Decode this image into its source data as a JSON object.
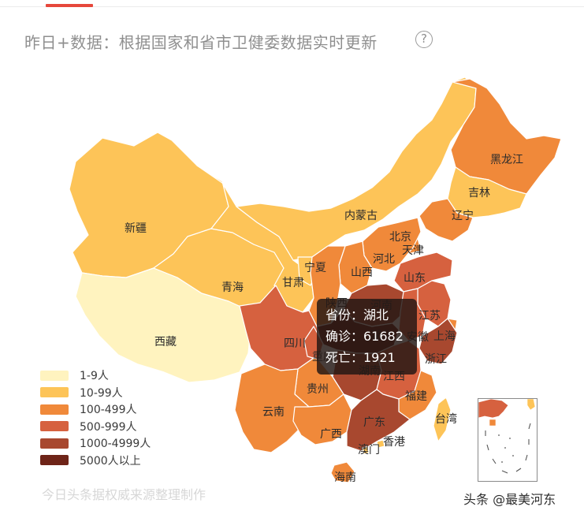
{
  "header": {
    "title": "昨日+数据：根据国家和省市卫健委数据实时更新",
    "help_glyph": "?"
  },
  "colors": {
    "tier_1_9": "#fff3bf",
    "tier_10_99": "#fdc458",
    "tier_100_499": "#f0893a",
    "tier_500_999": "#d6613f",
    "tier_1000_4999": "#a8482f",
    "tier_5000_plus": "#6e2418",
    "border": "#ffffff"
  },
  "map": {
    "provinces": [
      {
        "id": "xinjiang",
        "label": "新疆",
        "tier": "tier_10_99"
      },
      {
        "id": "xizang",
        "label": "西藏",
        "tier": "tier_1_9"
      },
      {
        "id": "qinghai",
        "label": "青海",
        "tier": "tier_10_99"
      },
      {
        "id": "gansu",
        "label": "甘肃",
        "tier": "tier_10_99"
      },
      {
        "id": "neimenggu",
        "label": "内蒙古",
        "tier": "tier_10_99"
      },
      {
        "id": "ningxia",
        "label": "宁夏",
        "tier": "tier_10_99"
      },
      {
        "id": "heilongjiang",
        "label": "黑龙江",
        "tier": "tier_100_499"
      },
      {
        "id": "jilin",
        "label": "吉林",
        "tier": "tier_10_99"
      },
      {
        "id": "liaoning",
        "label": "辽宁",
        "tier": "tier_100_499"
      },
      {
        "id": "beijing",
        "label": "北京",
        "tier": "tier_100_499"
      },
      {
        "id": "tianjin",
        "label": "天津",
        "tier": "tier_100_499"
      },
      {
        "id": "hebei",
        "label": "河北",
        "tier": "tier_100_499"
      },
      {
        "id": "shanxi",
        "label": "山西",
        "tier": "tier_100_499"
      },
      {
        "id": "shandong",
        "label": "山东",
        "tier": "tier_500_999"
      },
      {
        "id": "shaanxi",
        "label": "陕西",
        "tier": "tier_100_499"
      },
      {
        "id": "henan",
        "label": "河南",
        "tier": "tier_1000_4999"
      },
      {
        "id": "jiangsu",
        "label": "江苏",
        "tier": "tier_500_999"
      },
      {
        "id": "anhui",
        "label": "安徽",
        "tier": "tier_500_999"
      },
      {
        "id": "shanghai",
        "label": "上海",
        "tier": "tier_100_499"
      },
      {
        "id": "hubei",
        "label": "湖北",
        "tier": "tier_5000_plus"
      },
      {
        "id": "sichuan",
        "label": "四川",
        "tier": "tier_500_999"
      },
      {
        "id": "chongqing",
        "label": "重庆",
        "tier": "tier_500_999"
      },
      {
        "id": "zhejiang",
        "label": "浙江",
        "tier": "tier_1000_4999"
      },
      {
        "id": "hunan",
        "label": "湖南",
        "tier": "tier_1000_4999"
      },
      {
        "id": "jiangxi",
        "label": "江西",
        "tier": "tier_500_999"
      },
      {
        "id": "guizhou",
        "label": "贵州",
        "tier": "tier_100_499"
      },
      {
        "id": "yunnan",
        "label": "云南",
        "tier": "tier_100_499"
      },
      {
        "id": "fujian",
        "label": "福建",
        "tier": "tier_100_499"
      },
      {
        "id": "guangxi",
        "label": "广西",
        "tier": "tier_100_499"
      },
      {
        "id": "guangdong",
        "label": "广东",
        "tier": "tier_1000_4999"
      },
      {
        "id": "hainan",
        "label": "海南",
        "tier": "tier_100_499"
      },
      {
        "id": "taiwan",
        "label": "台湾",
        "tier": "tier_10_99"
      },
      {
        "id": "hongkong",
        "label": "香港",
        "tier": "tier_10_99"
      },
      {
        "id": "macau",
        "label": "澳门",
        "tier": "tier_10_99"
      }
    ]
  },
  "tooltip": {
    "province_row": "省份：湖北",
    "confirmed_row": "确诊：61682",
    "deaths_row": "死亡：1921"
  },
  "legend": {
    "items": [
      {
        "label": "1-9人",
        "color": "#fff3bf"
      },
      {
        "label": "10-99人",
        "color": "#fdc458"
      },
      {
        "label": "100-499人",
        "color": "#f0893a"
      },
      {
        "label": "500-999人",
        "color": "#d6613f"
      },
      {
        "label": "1000-4999人",
        "color": "#a8482f"
      },
      {
        "label": "5000人以上",
        "color": "#6e2418"
      }
    ]
  },
  "footer": {
    "source_note": "今日头条据权威来源整理制作",
    "watermark": "头条 @最美河东"
  }
}
